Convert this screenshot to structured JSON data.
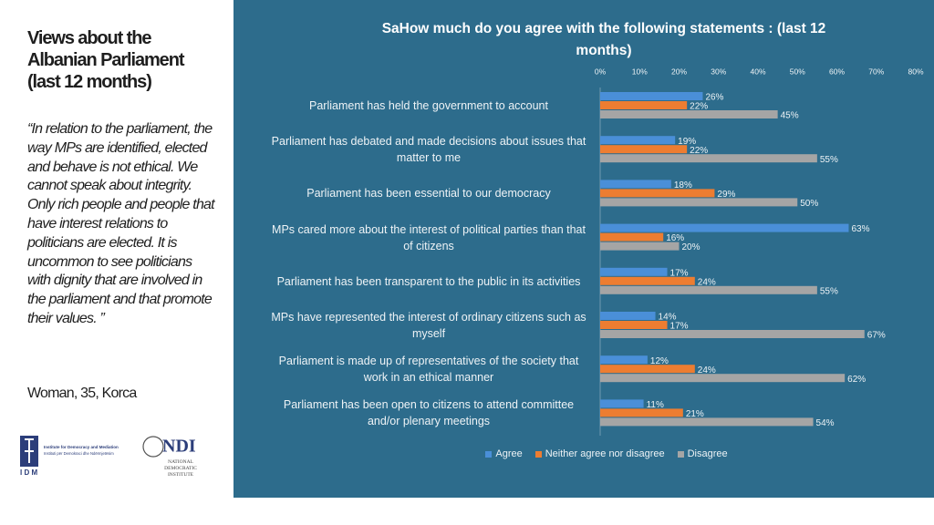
{
  "sidebar": {
    "title": "Views about the Albanian Parliament (last 12 months)",
    "quote": "“In relation to the parliament, the way MPs are identified, elected and behave is not ethical. We cannot speak about integrity. Only rich people and people that have interest relations to politicians are elected. It is uncommon to see politicians with dignity that are involved in the parliament and that promote their values. ”",
    "attribution": "Woman, 35, Korca",
    "logos": {
      "idm_name": "Institute for Democracy and Mediation",
      "idm_name_sq": "Instituti për Demokraci dhe Ndërmjetësim",
      "idm_abbr": "I D M",
      "ndi_abbr": "NDI",
      "ndi_name": "NATIONAL DEMOCRATIC INSTITUTE"
    }
  },
  "chart_data": {
    "type": "hbar",
    "title": "SaHow much do you agree with the following statements : (last 12 months)",
    "categories": [
      "Parliament has held the government to account",
      "Parliament has debated and made decisions about issues that matter to me",
      "Parliament has been essential to our democracy",
      "MPs cared more about the interest of political parties than that of citizens",
      "Parliament has been transparent to the public in its activities",
      "MPs have represented the interest of ordinary citizens such as myself",
      "Parliament is made up of representatives of the society that work in an ethical manner",
      "Parliament has been open to citizens to attend committee and/or plenary meetings"
    ],
    "series": [
      {
        "name": "Agree",
        "color": "#4a8fd8",
        "values": [
          26,
          19,
          18,
          63,
          17,
          14,
          12,
          11
        ],
        "value_labels": [
          "26%",
          "19%",
          "18%",
          "63%",
          "17%",
          "14%",
          "12%",
          "11%"
        ]
      },
      {
        "name": "Neither agree nor disagree",
        "color": "#ed7d31",
        "values": [
          22,
          22,
          29,
          16,
          24,
          17,
          24,
          21
        ],
        "value_labels": [
          "22%",
          "22%",
          "29%",
          "16%",
          "24%",
          "17%",
          "24%",
          "21%"
        ]
      },
      {
        "name": "Disagree",
        "color": "#a5a5a5",
        "values": [
          45,
          55,
          50,
          20,
          55,
          67,
          62,
          54
        ],
        "value_labels": [
          "45%",
          "55%",
          "50%",
          "20%",
          "55%",
          "67%",
          "62%",
          "54%"
        ]
      }
    ],
    "xlim": [
      0,
      80
    ],
    "xticks": [
      {
        "value": 0,
        "label": "0%"
      },
      {
        "value": 10,
        "label": "10%"
      },
      {
        "value": 20,
        "label": "20%"
      },
      {
        "value": 30,
        "label": "30%"
      },
      {
        "value": 40,
        "label": "40%"
      },
      {
        "value": 50,
        "label": "50%"
      },
      {
        "value": 60,
        "label": "60%"
      },
      {
        "value": 70,
        "label": "70%"
      },
      {
        "value": 80,
        "label": "80%"
      }
    ],
    "grid": false,
    "legend": "bottom"
  }
}
